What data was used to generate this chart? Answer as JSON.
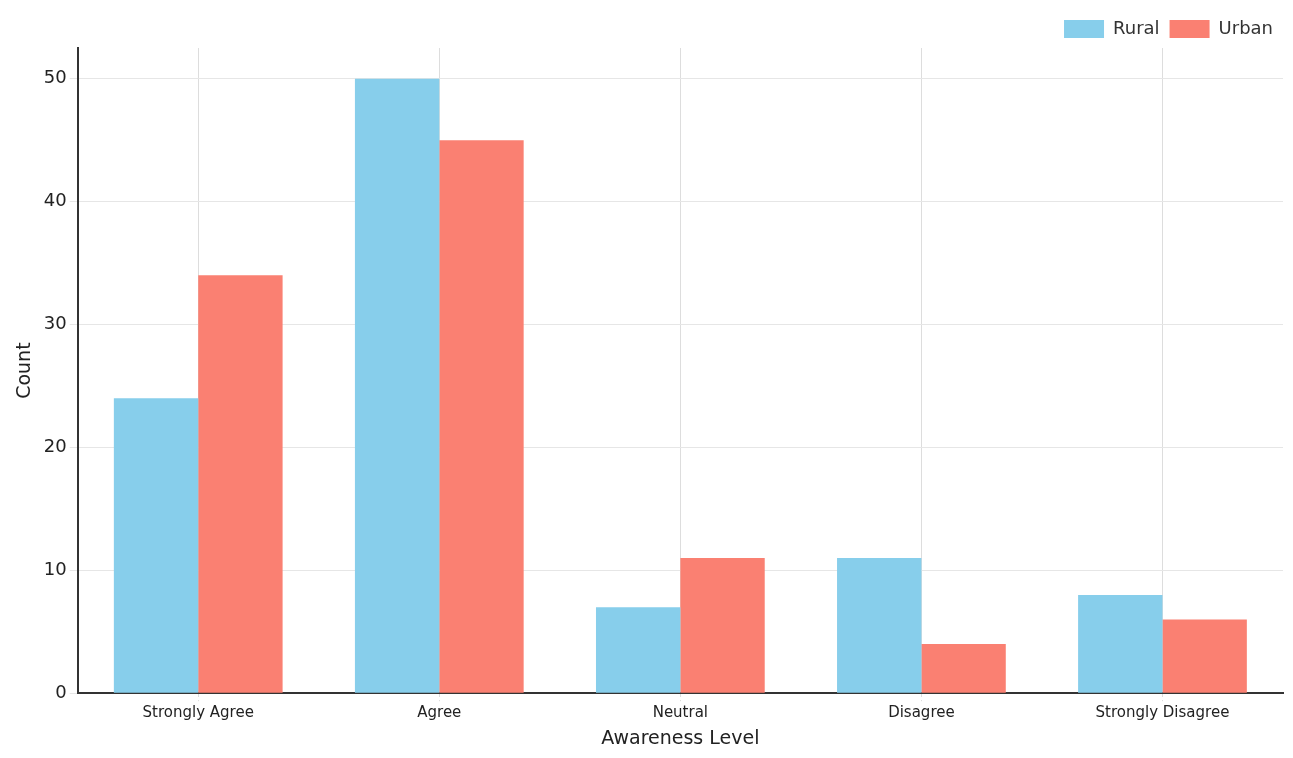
{
  "chart_data": {
    "type": "bar",
    "xlabel": "Awareness Level",
    "ylabel": "Count",
    "categories": [
      "Strongly Agree",
      "Agree",
      "Neutral",
      "Disagree",
      "Strongly Disagree"
    ],
    "series": [
      {
        "name": "Rural",
        "color": "#87ceeb",
        "values": [
          24,
          50,
          7,
          11,
          8
        ]
      },
      {
        "name": "Urban",
        "color": "#fa8072",
        "values": [
          34,
          45,
          11,
          4,
          6
        ]
      }
    ],
    "ylim": [
      0,
      52.5
    ],
    "yticks": [
      0,
      10,
      20,
      30,
      40,
      50
    ],
    "grid": true,
    "legend": "top right"
  }
}
